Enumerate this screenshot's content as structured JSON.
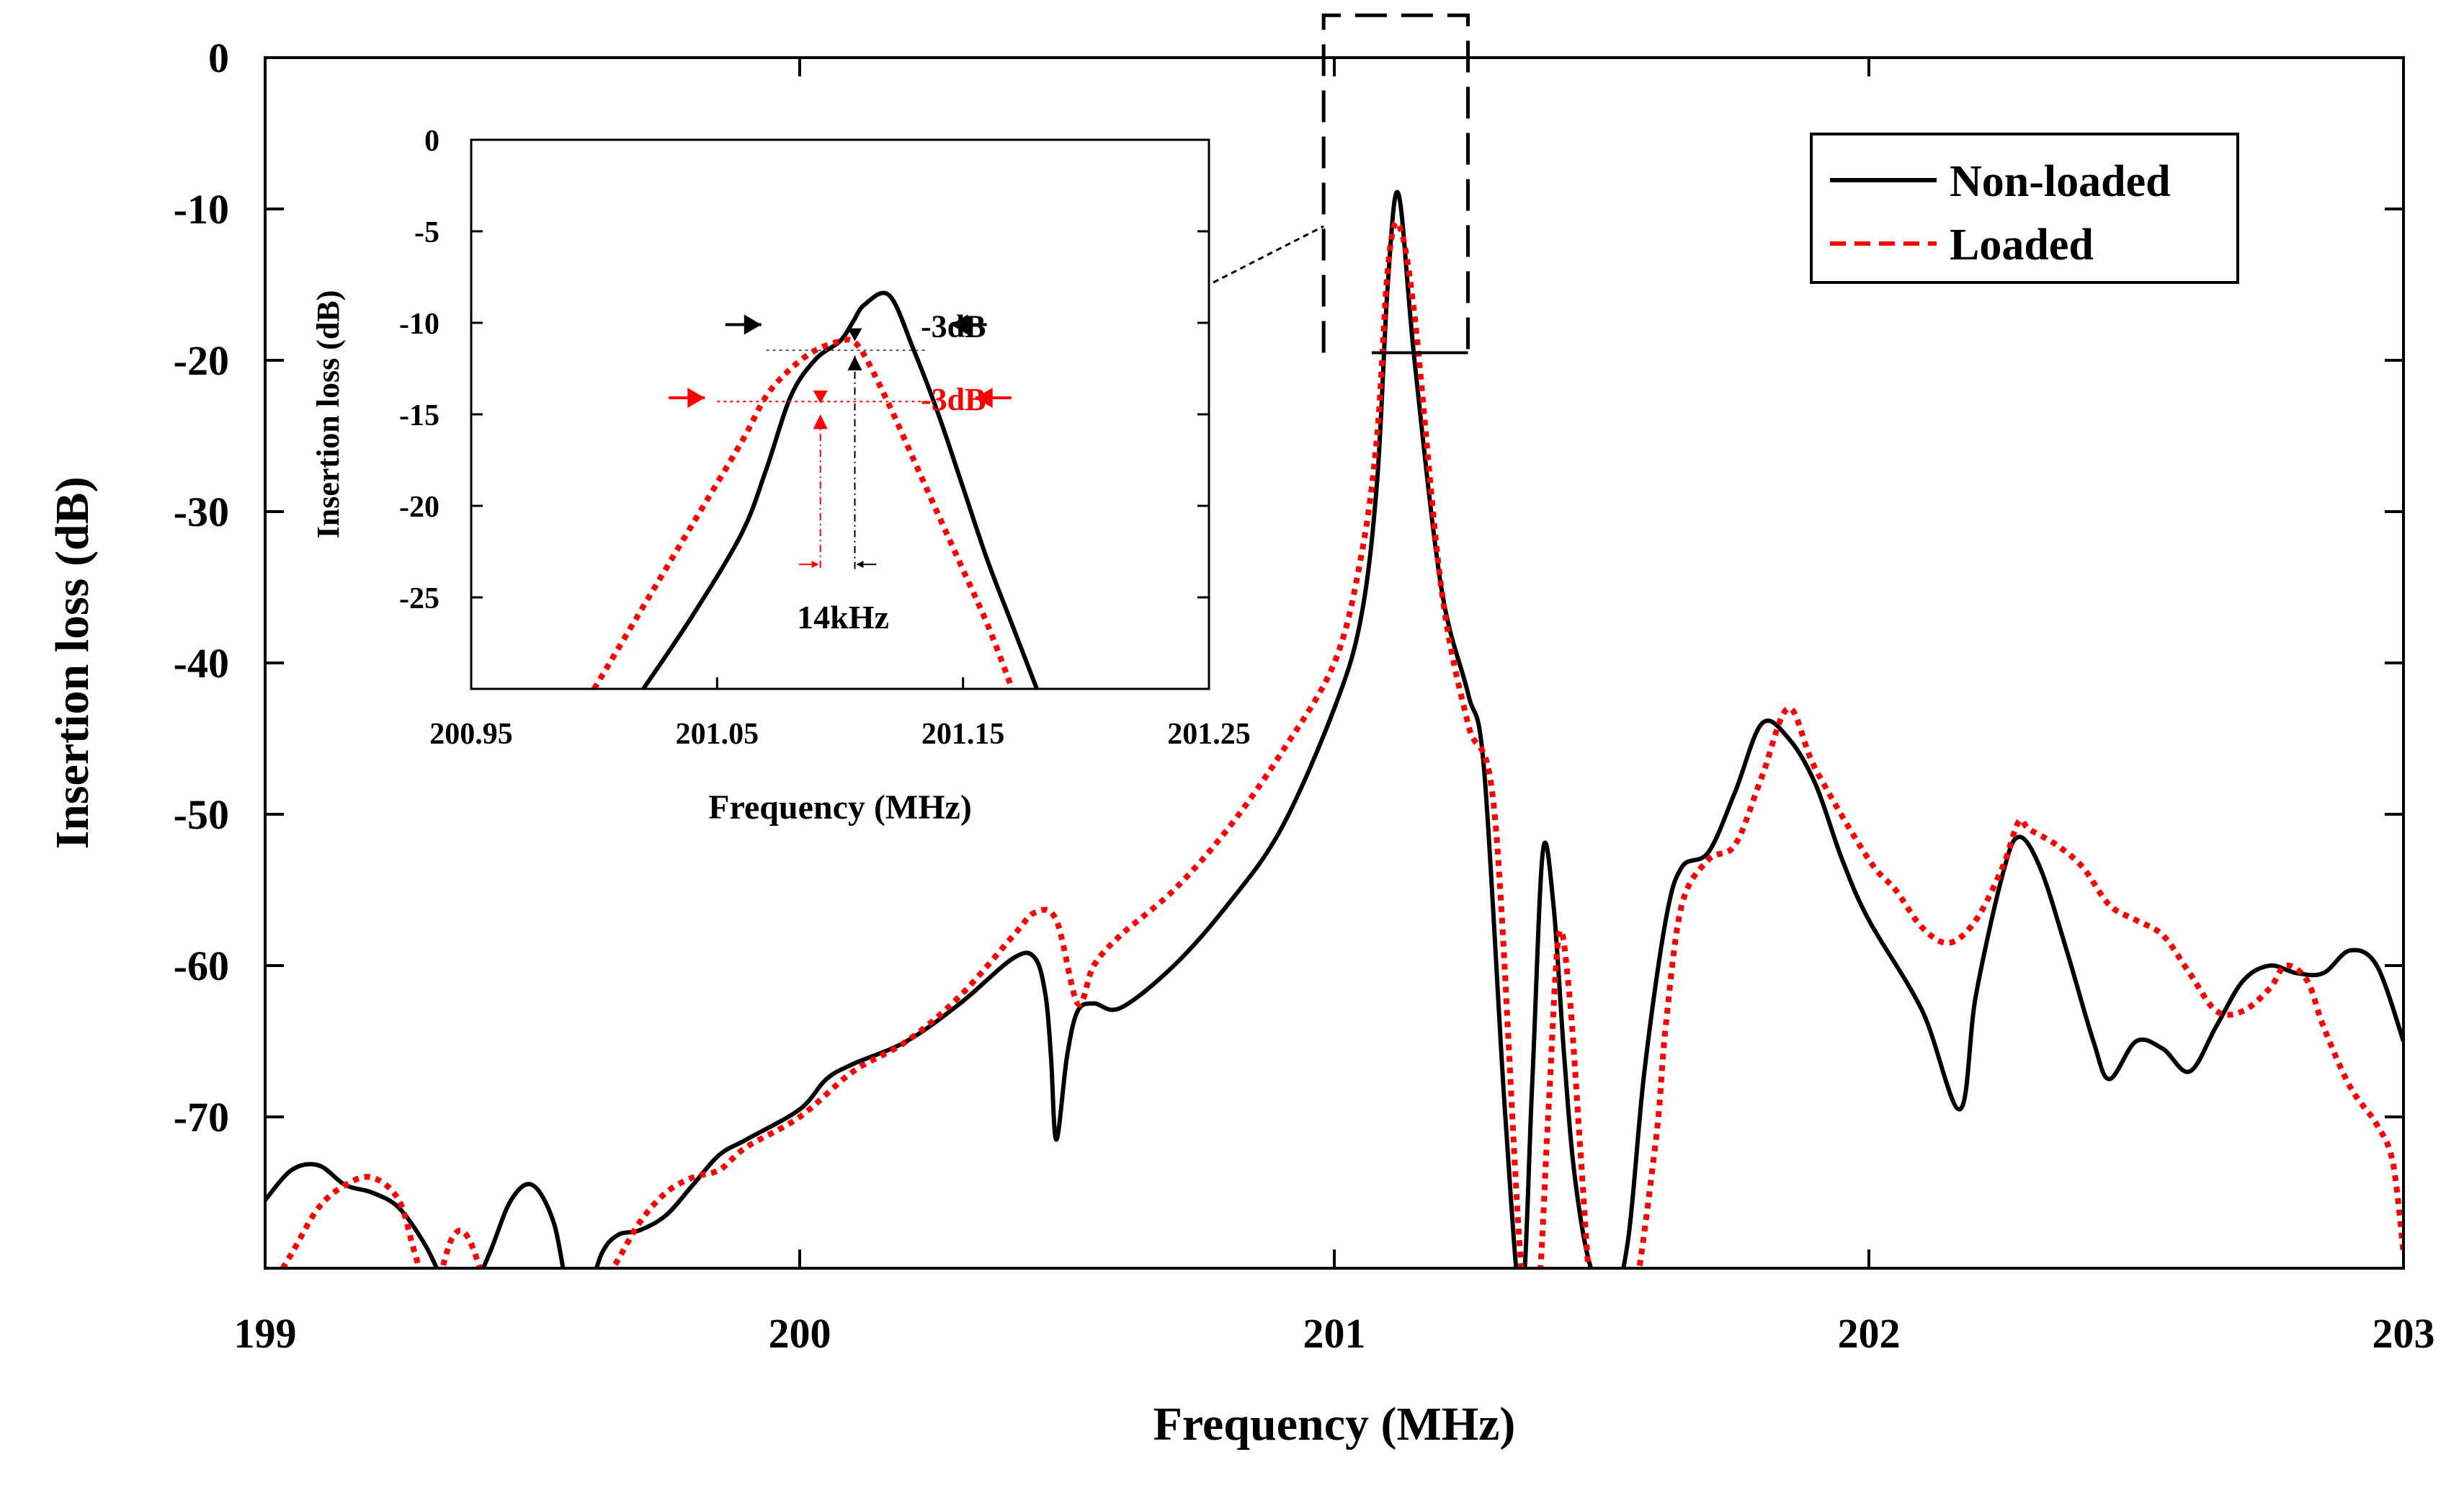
{
  "chart_data": [
    {
      "id": "main",
      "type": "line",
      "title": "",
      "xlabel": "Frequency (MHz)",
      "ylabel": "Insertion loss (dB)",
      "xlim": [
        199,
        203
      ],
      "ylim": [
        -80,
        0
      ],
      "xticks": [
        199,
        200,
        201,
        202,
        203
      ],
      "xtick_labels": [
        "199",
        "200",
        "201",
        "202",
        "203"
      ],
      "yticks": [
        0,
        -10,
        -20,
        -30,
        -40,
        -50,
        -60,
        -70
      ],
      "ytick_labels": [
        "0",
        "-10",
        "-20",
        "-30",
        "-40",
        "-50",
        "-60",
        "-70"
      ],
      "grid": false,
      "legend_position": "top-right",
      "series": [
        {
          "name": "Non-loaded",
          "color": "#000000",
          "style": "solid",
          "x": [
            199.0,
            199.05,
            199.1,
            199.15,
            199.2,
            199.25,
            199.3,
            199.35,
            199.38,
            199.42,
            199.46,
            199.5,
            199.54,
            199.57,
            199.6,
            199.63,
            199.66,
            199.7,
            199.75,
            199.8,
            199.85,
            199.9,
            200.0,
            200.05,
            200.1,
            200.2,
            200.3,
            200.4,
            200.44,
            200.46,
            200.47,
            200.48,
            200.5,
            200.52,
            200.55,
            200.6,
            200.7,
            200.8,
            200.9,
            201.0,
            201.05,
            201.08,
            201.1,
            201.12,
            201.15,
            201.2,
            201.25,
            201.28,
            201.32,
            201.35,
            201.37,
            201.39,
            201.41,
            201.43,
            201.45,
            201.48,
            201.52,
            201.55,
            201.58,
            201.62,
            201.65,
            201.7,
            201.75,
            201.8,
            201.85,
            201.9,
            201.95,
            202.0,
            202.1,
            202.17,
            202.2,
            202.25,
            202.28,
            202.32,
            202.37,
            202.42,
            202.45,
            202.5,
            202.55,
            202.6,
            202.65,
            202.7,
            202.75,
            202.8,
            202.85,
            202.9,
            202.95,
            203.0
          ],
          "values": [
            -75.5,
            -73.5,
            -73.2,
            -74.5,
            -75.0,
            -76.0,
            -78.5,
            -82.0,
            -82.0,
            -79.0,
            -75.5,
            -74.5,
            -77.0,
            -82.0,
            -82.0,
            -79.0,
            -77.8,
            -77.5,
            -76.5,
            -74.5,
            -72.5,
            -71.5,
            -69.5,
            -67.5,
            -66.5,
            -65.0,
            -62.5,
            -59.5,
            -59.5,
            -62.0,
            -66.0,
            -71.5,
            -66.0,
            -63.0,
            -62.5,
            -62.8,
            -60.0,
            -56.0,
            -51.0,
            -43.0,
            -37.0,
            -28.0,
            -15.0,
            -9.0,
            -20.0,
            -35.0,
            -42.0,
            -47.0,
            -70.0,
            -82.0,
            -68.0,
            -52.5,
            -56.0,
            -66.0,
            -74.0,
            -80.0,
            -82.0,
            -78.0,
            -67.0,
            -57.0,
            -53.5,
            -52.5,
            -48.5,
            -44.0,
            -45.0,
            -48.0,
            -53.0,
            -57.0,
            -63.0,
            -69.5,
            -62.0,
            -54.0,
            -51.5,
            -53.5,
            -59.0,
            -65.0,
            -67.5,
            -65.0,
            -65.5,
            -67.0,
            -64.0,
            -61.0,
            -60.0,
            -60.5,
            -60.5,
            -59.0,
            -60.0,
            -65.0
          ]
        },
        {
          "name": "Loaded",
          "color": "#ff0000",
          "style": "dotted",
          "x": [
            199.0,
            199.05,
            199.1,
            199.15,
            199.2,
            199.25,
            199.28,
            199.31,
            199.35,
            199.38,
            199.42,
            199.44,
            199.47,
            199.5,
            199.53,
            199.6,
            199.65,
            199.7,
            199.75,
            199.8,
            199.85,
            199.9,
            200.0,
            200.1,
            200.2,
            200.3,
            200.4,
            200.44,
            200.48,
            200.52,
            200.55,
            200.6,
            200.7,
            200.8,
            200.9,
            201.0,
            201.05,
            201.08,
            201.1,
            201.12,
            201.15,
            201.2,
            201.25,
            201.3,
            201.35,
            201.38,
            201.4,
            201.42,
            201.44,
            201.46,
            201.48,
            201.5,
            201.55,
            201.6,
            201.62,
            201.65,
            201.7,
            201.75,
            201.8,
            201.85,
            201.9,
            202.0,
            202.05,
            202.1,
            202.15,
            202.2,
            202.25,
            202.28,
            202.3,
            202.35,
            202.4,
            202.45,
            202.5,
            202.55,
            202.6,
            202.65,
            202.7,
            202.75,
            202.78,
            202.82,
            202.85,
            202.9,
            202.95,
            202.98,
            203.0
          ],
          "values": [
            -82.0,
            -79.0,
            -76.0,
            -74.5,
            -74.0,
            -75.5,
            -79.0,
            -82.0,
            -78.0,
            -78.0,
            -82.0,
            -84.0,
            -82.0,
            -82.0,
            -82.0,
            -82.0,
            -80.0,
            -77.0,
            -75.0,
            -74.0,
            -73.5,
            -72.0,
            -70.0,
            -67.0,
            -65.0,
            -62.0,
            -58.0,
            -56.5,
            -57.0,
            -62.5,
            -60.0,
            -58.0,
            -55.0,
            -51.0,
            -46.0,
            -40.0,
            -33.0,
            -25.0,
            -14.0,
            -11.0,
            -17.0,
            -35.0,
            -44.0,
            -50.0,
            -80.0,
            -82.0,
            -70.0,
            -58.0,
            -62.0,
            -72.0,
            -82.0,
            -85.0,
            -84.0,
            -72.0,
            -64.0,
            -56.0,
            -53.0,
            -52.0,
            -47.5,
            -43.0,
            -47.0,
            -53.0,
            -55.0,
            -57.5,
            -58.5,
            -57.0,
            -53.5,
            -50.5,
            -51.0,
            -52.0,
            -53.5,
            -56.0,
            -57.0,
            -58.0,
            -60.5,
            -63.0,
            -63.0,
            -61.5,
            -60.0,
            -61.0,
            -64.0,
            -68.0,
            -70.5,
            -73.0,
            -79.0
          ]
        }
      ],
      "legend": [
        "Non-loaded",
        "Loaded"
      ]
    },
    {
      "id": "inset",
      "type": "line",
      "title": "",
      "xlabel": "Frequency (MHz)",
      "ylabel": "Insertion loss (dB)",
      "xlim": [
        200.95,
        201.25
      ],
      "ylim": [
        -30,
        0
      ],
      "xticks": [
        200.95,
        201.05,
        201.15,
        201.25
      ],
      "xtick_labels": [
        "200.95",
        "201.05",
        "201.15",
        "201.25"
      ],
      "yticks": [
        0,
        -5,
        -10,
        -15,
        -20,
        -25
      ],
      "ytick_labels": [
        "0",
        "-5",
        "-10",
        "-15",
        "-20",
        "-25"
      ],
      "grid": false,
      "series": [
        {
          "name": "Non-loaded",
          "color": "#000000",
          "style": "solid",
          "x": [
            201.02,
            201.04,
            201.06,
            201.07,
            201.08,
            201.09,
            201.1,
            201.105,
            201.11,
            201.12,
            201.13,
            201.14,
            201.15,
            201.16,
            201.17,
            201.18
          ],
          "values": [
            -30.0,
            -26.0,
            -21.5,
            -18.0,
            -14.0,
            -12.0,
            -11.0,
            -10.0,
            -9.0,
            -8.5,
            -11.5,
            -15.0,
            -19.0,
            -23.0,
            -26.5,
            -30.0
          ],
          "annotation": "-3dB"
        },
        {
          "name": "Loaded",
          "color": "#ff0000",
          "style": "dotted",
          "x": [
            201.0,
            201.02,
            201.04,
            201.06,
            201.07,
            201.08,
            201.09,
            201.1,
            201.105,
            201.11,
            201.12,
            201.13,
            201.14,
            201.15,
            201.16,
            201.17
          ],
          "values": [
            -30.0,
            -25.5,
            -21.0,
            -16.5,
            -14.0,
            -12.5,
            -11.5,
            -11.0,
            -11.0,
            -11.8,
            -14.5,
            -17.5,
            -20.5,
            -23.5,
            -26.5,
            -30.0
          ],
          "annotation": "-3dB"
        }
      ],
      "annotations": [
        {
          "text": "-3dB",
          "color": "#000000"
        },
        {
          "text": "-3dB",
          "color": "#ff0000"
        },
        {
          "text": "14kHz",
          "color": "#000000"
        }
      ]
    }
  ]
}
